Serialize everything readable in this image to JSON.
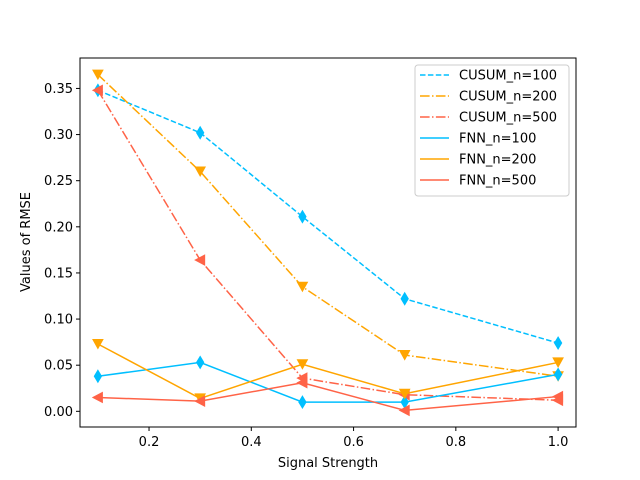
{
  "chart_data": {
    "type": "line",
    "xlabel": "Signal Strength",
    "ylabel": "Values of RMSE",
    "xlim": [
      0.065,
      1.035
    ],
    "ylim": [
      -0.017,
      0.383
    ],
    "x_ticks": [
      0.2,
      0.4,
      0.6,
      0.8,
      1.0
    ],
    "x_tick_labels": [
      "0.2",
      "0.4",
      "0.6",
      "0.8",
      "1.0"
    ],
    "y_ticks": [
      0.0,
      0.05,
      0.1,
      0.15,
      0.2,
      0.25,
      0.3,
      0.35
    ],
    "y_tick_labels": [
      "0.00",
      "0.05",
      "0.10",
      "0.15",
      "0.20",
      "0.25",
      "0.30",
      "0.35"
    ],
    "grid": false,
    "legend_position": "top-right",
    "x": [
      0.1,
      0.3,
      0.5,
      0.7,
      1.0
    ],
    "series": [
      {
        "name": "CUSUM_n=100",
        "values": [
          0.348,
          0.302,
          0.211,
          0.122,
          0.074
        ],
        "color": "#00bfff",
        "dash": "dashed",
        "marker": "thin-diamond"
      },
      {
        "name": "CUSUM_n=200",
        "values": [
          0.365,
          0.26,
          0.135,
          0.061,
          0.038
        ],
        "color": "#ffa500",
        "dash": "dashdot",
        "marker": "triangle-down"
      },
      {
        "name": "CUSUM_n=500",
        "values": [
          0.348,
          0.164,
          0.036,
          0.018,
          0.012
        ],
        "color": "#ff6347",
        "dash": "dashdot",
        "marker": "triangle-left"
      },
      {
        "name": "FNN_n=100",
        "values": [
          0.038,
          0.053,
          0.01,
          0.01,
          0.04
        ],
        "color": "#00bfff",
        "dash": "solid",
        "marker": "thin-diamond"
      },
      {
        "name": "FNN_n=200",
        "values": [
          0.073,
          0.014,
          0.051,
          0.019,
          0.053
        ],
        "color": "#ffa500",
        "dash": "solid",
        "marker": "triangle-down"
      },
      {
        "name": "FNN_n=500",
        "values": [
          0.015,
          0.011,
          0.031,
          0.001,
          0.016
        ],
        "color": "#ff6347",
        "dash": "solid",
        "marker": "triangle-left"
      }
    ]
  }
}
